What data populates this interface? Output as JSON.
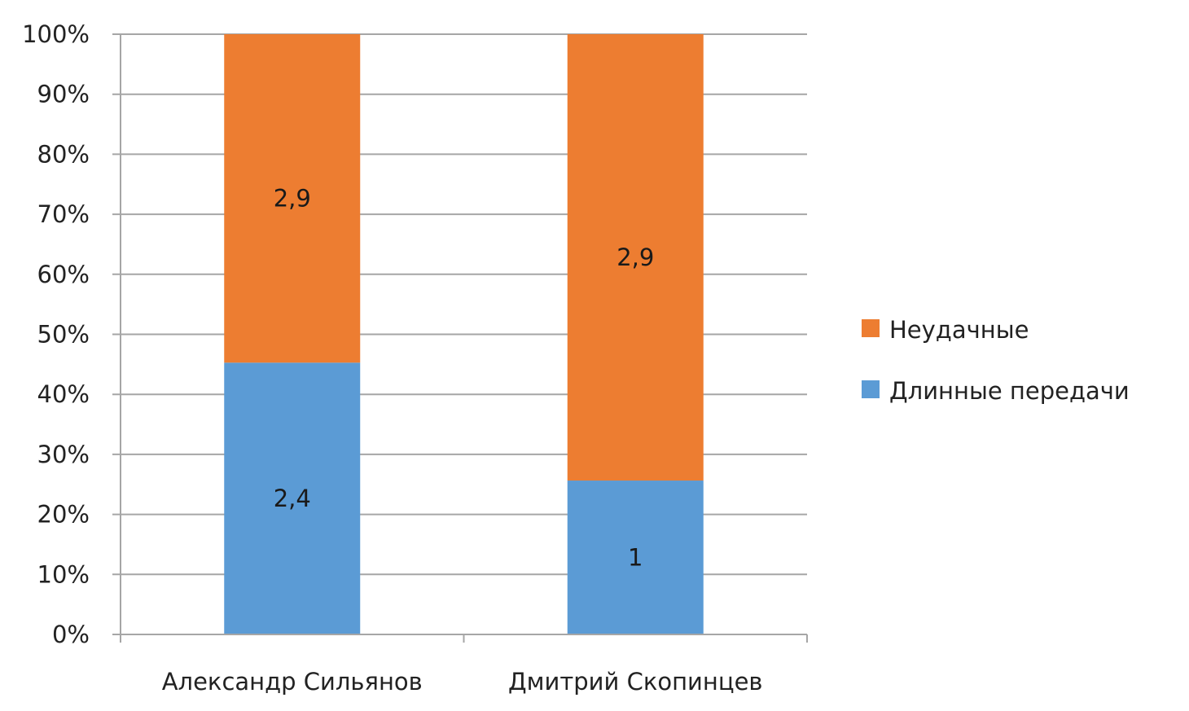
{
  "chart_data": {
    "type": "bar",
    "stacked": true,
    "normalized": true,
    "title": "",
    "xlabel": "",
    "ylabel": "",
    "ylim": [
      0,
      100
    ],
    "yticks": [
      "0%",
      "10%",
      "20%",
      "30%",
      "40%",
      "50%",
      "60%",
      "70%",
      "80%",
      "90%",
      "100%"
    ],
    "categories": [
      "Александр Сильянов",
      "Дмитрий Скопинцев"
    ],
    "series": [
      {
        "name": "Длинные передачи",
        "values": [
          2.4,
          1
        ],
        "labels": [
          "2,4",
          "1"
        ],
        "color": "#5b9bd5"
      },
      {
        "name": "Неудачные",
        "values": [
          2.9,
          2.9
        ],
        "labels": [
          "2,9",
          "2,9"
        ],
        "color": "#ed7d31"
      }
    ],
    "legend": {
      "position": "right",
      "order": [
        "Неудачные",
        "Длинные передачи"
      ]
    },
    "grid": true
  }
}
